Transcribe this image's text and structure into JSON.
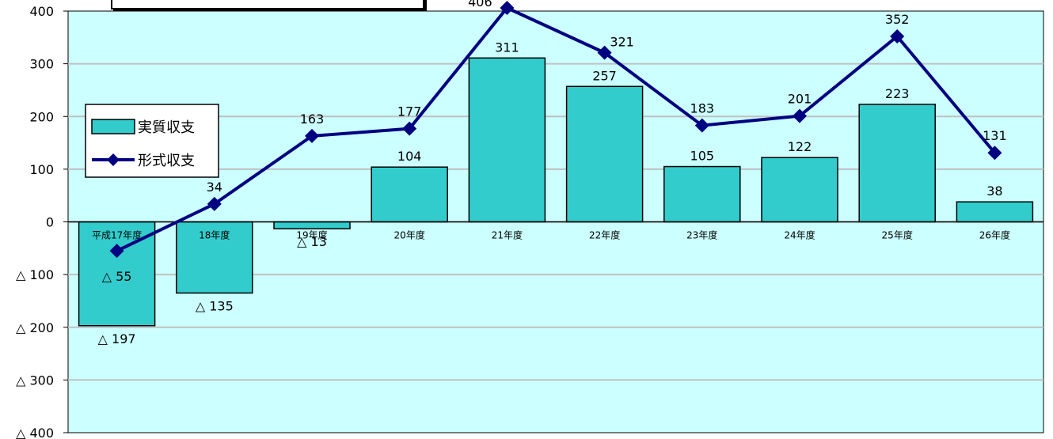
{
  "colors": {
    "plot_bg": "#ccffff",
    "bar_fill": "#33cccc",
    "bar_stroke": "#000000",
    "line": "#000080",
    "grid": "#c0c0c0"
  },
  "chart_data": {
    "type": "bar",
    "categories": [
      "平成17年度",
      "18年度",
      "19年度",
      "20年度",
      "21年度",
      "22年度",
      "23年度",
      "24年度",
      "25年度",
      "26年度"
    ],
    "series": [
      {
        "name": "実質収支",
        "type": "bar",
        "values": [
          -197,
          -135,
          -13,
          104,
          311,
          257,
          105,
          122,
          223,
          38
        ],
        "labels": [
          "△ 197",
          "△ 135",
          "△ 13",
          "104",
          "311",
          "257",
          "105",
          "122",
          "223",
          "38"
        ]
      },
      {
        "name": "形式収支",
        "type": "line",
        "marker": "diamond",
        "values": [
          -55,
          34,
          163,
          177,
          406,
          321,
          183,
          201,
          352,
          131
        ],
        "labels": [
          "△ 55",
          "34",
          "163",
          "177",
          "406",
          "321",
          "183",
          "201",
          "352",
          "131"
        ]
      }
    ],
    "ylim": [
      -400,
      400
    ],
    "yticks": [
      400,
      300,
      200,
      100,
      0,
      -100,
      -200,
      -300,
      -400
    ],
    "ytick_labels": [
      "400",
      "300",
      "200",
      "100",
      "0",
      "△ 100",
      "△ 200",
      "△ 300",
      "△ 400"
    ],
    "grid": true,
    "legend": "left",
    "xlabel": "",
    "ylabel": ""
  }
}
